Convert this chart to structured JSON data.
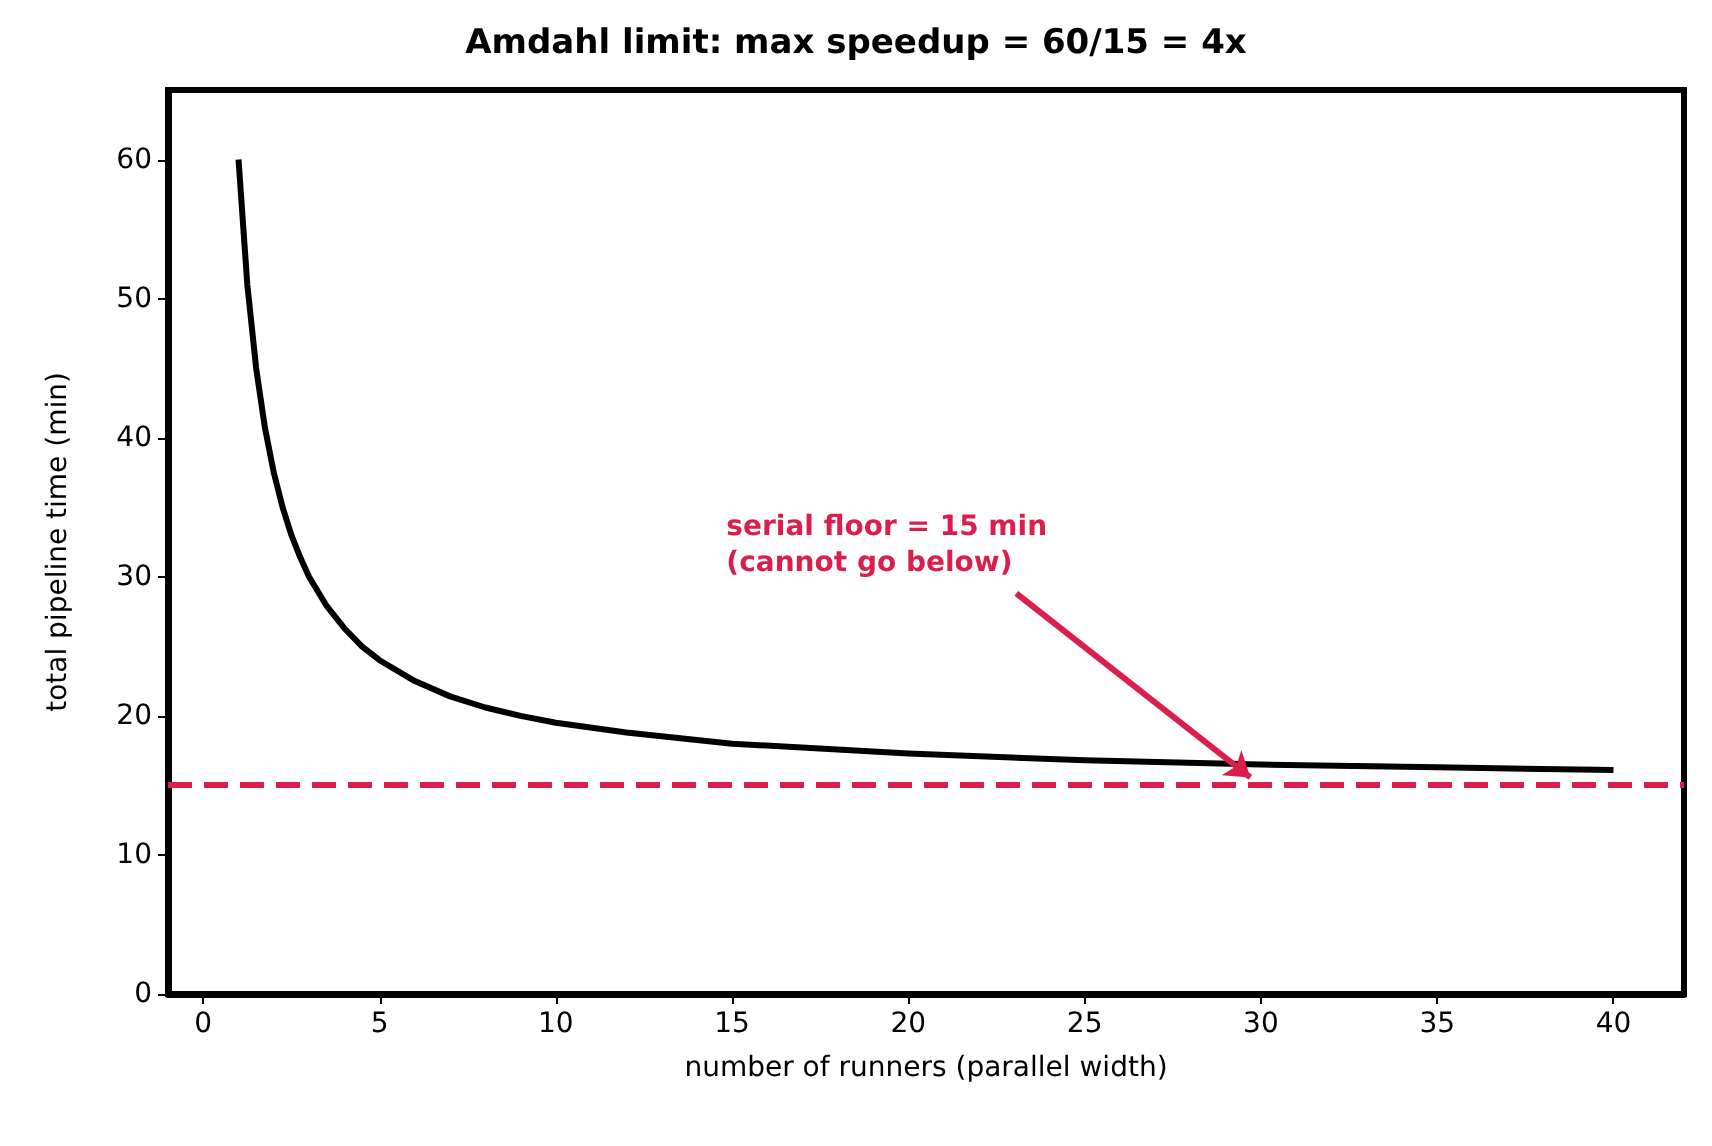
{
  "chart_data": {
    "type": "line",
    "title": "Amdahl limit: max speedup = 60/15 = 4x",
    "xlabel": "number of runners (parallel width)",
    "ylabel": "total pipeline time (min)",
    "x": [
      1,
      1.25,
      1.5,
      1.75,
      2,
      2.25,
      2.5,
      2.75,
      3,
      3.5,
      4,
      4.5,
      5,
      6,
      7,
      8,
      9,
      10,
      12,
      15,
      20,
      25,
      30,
      35,
      40
    ],
    "series": [
      {
        "color": "#000000",
        "values": [
          60,
          51,
          45,
          40.7,
          37.5,
          35,
          33,
          31.4,
          30,
          27.9,
          26.3,
          25,
          24,
          22.5,
          21.4,
          20.6,
          20,
          19.5,
          18.8,
          18,
          17.3,
          16.8,
          16.5,
          16.3,
          16.1
        ]
      }
    ],
    "xlim": [
      -1,
      42
    ],
    "ylim": [
      0,
      65
    ],
    "xticks": [
      0,
      5,
      10,
      15,
      20,
      25,
      30,
      35,
      40
    ],
    "yticks": [
      0,
      10,
      20,
      30,
      40,
      50,
      60
    ],
    "grid": false,
    "line_style": "solid",
    "ref_lines": [
      {
        "axis": "y",
        "value": 15,
        "color": "#dc1e4b",
        "line_style": "dashed"
      }
    ],
    "annotations": [
      {
        "text": "serial floor = 15 min\n(cannot go below)",
        "x": 29.7,
        "y": 15
      }
    ]
  }
}
